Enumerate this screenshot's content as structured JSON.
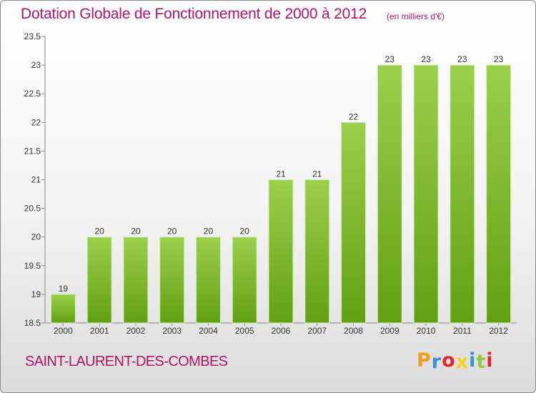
{
  "title": "Dotation Globale de Fonctionnement de 2000 à 2012",
  "subtitle": "(en milliers d'€)",
  "commune": "SAINT-LAURENT-DES-COMBES",
  "logo": {
    "letters": [
      "P",
      "r",
      "o",
      "x",
      "i",
      "t",
      "i"
    ],
    "colors": [
      "#f39a1f",
      "#3a8fd6",
      "#e3262c",
      "#f7d21c",
      "#3a8fd6",
      "#9ac43c",
      "#e3262c"
    ]
  },
  "colors": {
    "bar": "#8cc43c",
    "bar_dark": "#62a012",
    "text": "#b0156b"
  },
  "chart_data": {
    "type": "bar",
    "categories": [
      "2000",
      "2001",
      "2002",
      "2003",
      "2004",
      "2005",
      "2006",
      "2007",
      "2008",
      "2009",
      "2010",
      "2011",
      "2012"
    ],
    "values": [
      19,
      20,
      20,
      20,
      20,
      20,
      21,
      21,
      22,
      23,
      23,
      23,
      23
    ],
    "data_labels": [
      "19",
      "20",
      "20",
      "20",
      "20",
      "20",
      "21",
      "21",
      "22",
      "23",
      "23",
      "23",
      "23"
    ],
    "ylim": [
      18.5,
      23.5
    ],
    "yticks": [
      "18.5",
      "19",
      "19.5",
      "20",
      "20.5",
      "21",
      "21.5",
      "22",
      "22.5",
      "23",
      "23.5"
    ],
    "grid": false,
    "legend": "none"
  }
}
